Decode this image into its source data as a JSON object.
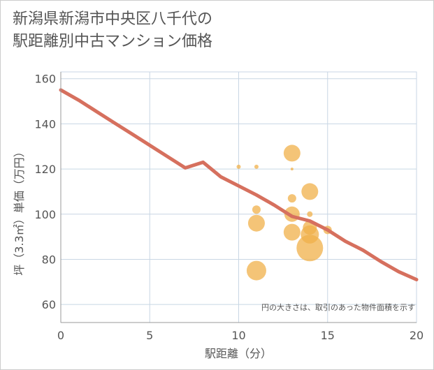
{
  "title_lines": [
    "新潟県新潟市中央区八千代の",
    "駅距離別中古マンション価格"
  ],
  "chart_data": {
    "type": "scatter",
    "title": "新潟県新潟市中央区八千代の駅距離別中古マンション価格",
    "xlabel": "駅距離（分）",
    "ylabel": "坪（3.3㎡）単価（万円）",
    "xlim": [
      0,
      20
    ],
    "ylim": [
      52,
      163
    ],
    "xticks": [
      0,
      5,
      10,
      15,
      20
    ],
    "yticks": [
      60,
      80,
      100,
      120,
      140,
      160
    ],
    "grid": true,
    "annotation": "円の大きさは、取引のあった物件面積を示す",
    "points": [
      {
        "x": 10,
        "y": 121,
        "size": 3
      },
      {
        "x": 11,
        "y": 121,
        "size": 3
      },
      {
        "x": 11,
        "y": 102,
        "size": 6
      },
      {
        "x": 11,
        "y": 96,
        "size": 12
      },
      {
        "x": 11,
        "y": 75,
        "size": 14
      },
      {
        "x": 13,
        "y": 127,
        "size": 12
      },
      {
        "x": 13,
        "y": 120,
        "size": 2
      },
      {
        "x": 13,
        "y": 107,
        "size": 6
      },
      {
        "x": 13,
        "y": 100,
        "size": 11
      },
      {
        "x": 13,
        "y": 92,
        "size": 12
      },
      {
        "x": 14,
        "y": 110,
        "size": 12
      },
      {
        "x": 14,
        "y": 100,
        "size": 4
      },
      {
        "x": 14,
        "y": 94,
        "size": 10
      },
      {
        "x": 14,
        "y": 91,
        "size": 13
      },
      {
        "x": 14,
        "y": 85,
        "size": 19
      },
      {
        "x": 15,
        "y": 93,
        "size": 6
      }
    ],
    "trend": {
      "name": "傾向線",
      "x": [
        0,
        1,
        2,
        3,
        4,
        5,
        6,
        7,
        8,
        9,
        10,
        11,
        12,
        13,
        14,
        15,
        16,
        17,
        18,
        19,
        20
      ],
      "y": [
        155,
        150.5,
        145.5,
        140.5,
        135.5,
        130.5,
        125.5,
        120.5,
        123,
        116.5,
        112.5,
        108.5,
        104,
        99,
        97,
        93,
        88,
        84,
        79,
        74.5,
        71
      ]
    },
    "colors": {
      "points": "#f0b04a",
      "trend": "#d6705e",
      "grid": "#c8d6e4",
      "axis": "#555555"
    }
  }
}
